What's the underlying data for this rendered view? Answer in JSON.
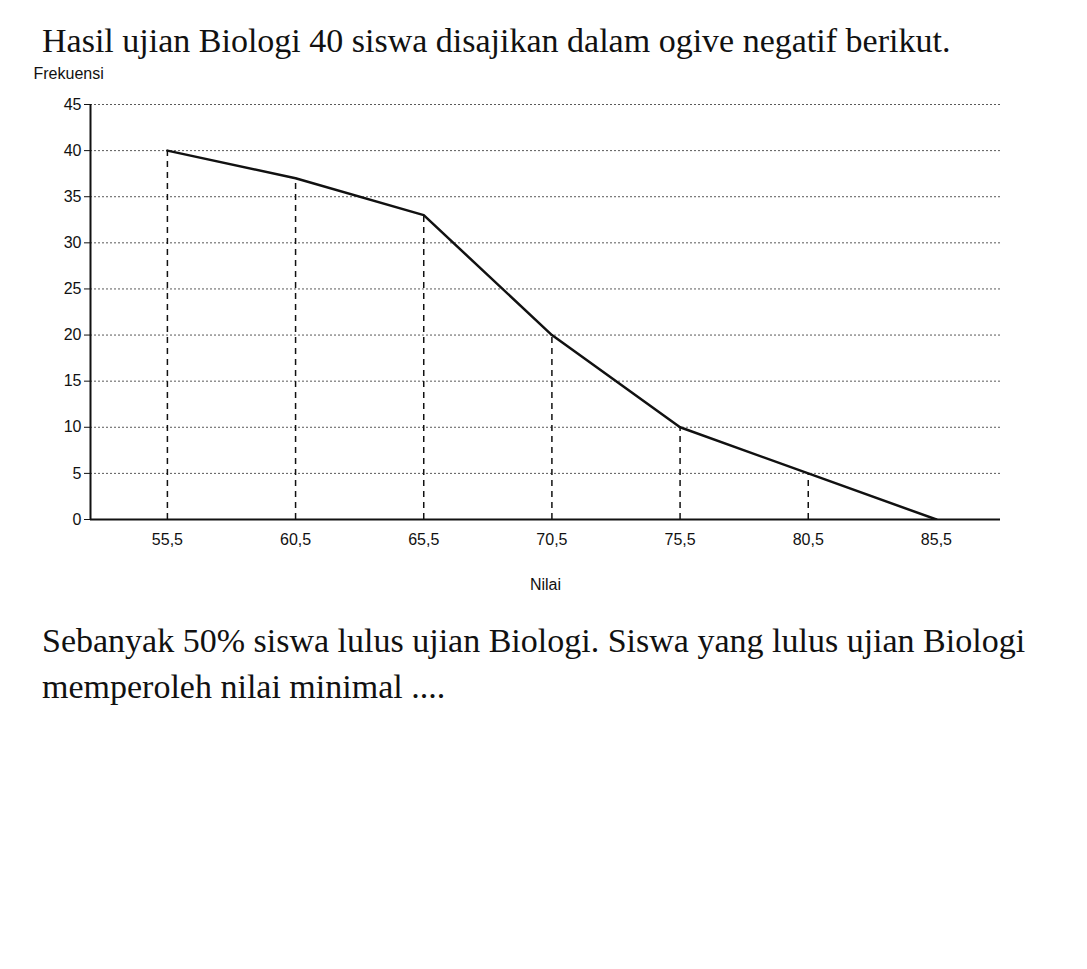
{
  "chart_data": {
    "type": "line",
    "title": "Hasil ujian Biologi 40 siswa disajikan dalam ogive negatif berikut.",
    "caption": "Sebanyak 50% siswa lulus ujian Biologi. Siswa yang lulus ujian Biologi memperoleh nilai minimal ....",
    "x_label": "Nilai",
    "y_label": "Frekuensi",
    "x": [
      55.5,
      60.5,
      65.5,
      70.5,
      75.5,
      80.5,
      85.5
    ],
    "values": [
      40,
      37,
      33,
      20,
      10,
      5,
      0
    ],
    "color": "#111111",
    "line_style": "solid",
    "xlim": [
      52.5,
      88
    ],
    "xticks": [
      {
        "value": 55.5,
        "label": "55,5"
      },
      {
        "value": 60.5,
        "label": "60,5"
      },
      {
        "value": 65.5,
        "label": "65,5"
      },
      {
        "value": 70.5,
        "label": "70,5"
      },
      {
        "value": 75.5,
        "label": "75,5"
      },
      {
        "value": 80.5,
        "label": "80,5"
      },
      {
        "value": 85.5,
        "label": "85,5"
      }
    ],
    "ylim": [
      0,
      45
    ],
    "yticks": [
      0,
      5,
      10,
      15,
      20,
      25,
      30,
      35,
      40,
      45
    ],
    "grid": true
  }
}
